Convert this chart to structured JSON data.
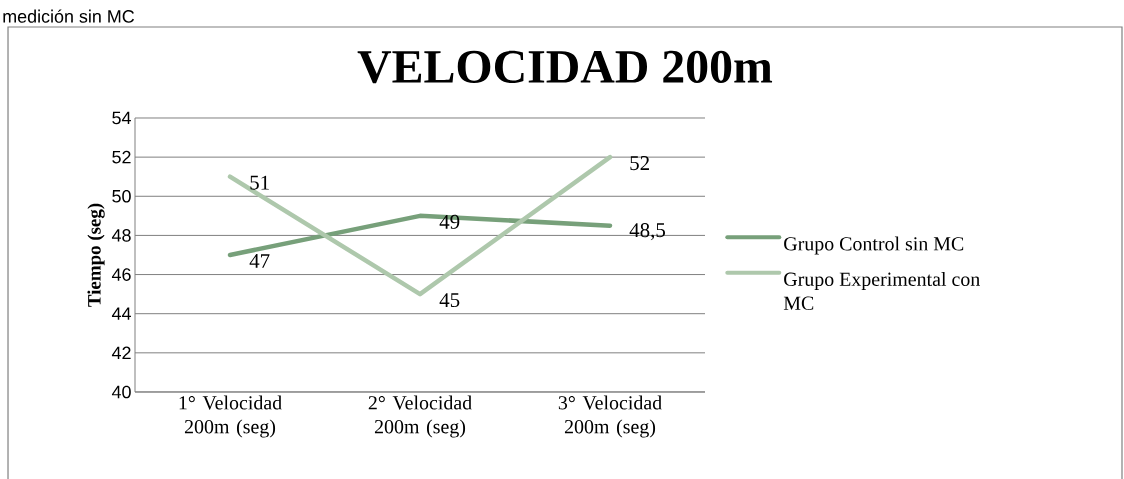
{
  "chart_data": {
    "type": "line",
    "title": "VELOCIDAD 200m",
    "ylabel": "Tiempo (seg)",
    "annotations": [
      "medición sin MC"
    ],
    "categories": [
      "1° Velocidad 200m (seg)",
      "2° Velocidad 200m (seg)",
      "3° Velocidad 200m (seg)"
    ],
    "series": [
      {
        "name": "Grupo Control sin MC",
        "color": "#77a07a",
        "values": [
          47,
          49,
          48.5
        ],
        "value_labels": [
          "47",
          "49",
          "48,5"
        ]
      },
      {
        "name": "Grupo Experimental con MC",
        "color": "#aec8ac",
        "values": [
          51,
          45,
          52
        ],
        "value_labels": [
          "51",
          "45",
          "52"
        ]
      }
    ],
    "ylim": [
      40,
      54
    ],
    "yticks": [
      40,
      42,
      44,
      46,
      48,
      50,
      52,
      54
    ],
    "grid": "y",
    "legend": "right",
    "marker": "none",
    "line_style": "solid"
  }
}
